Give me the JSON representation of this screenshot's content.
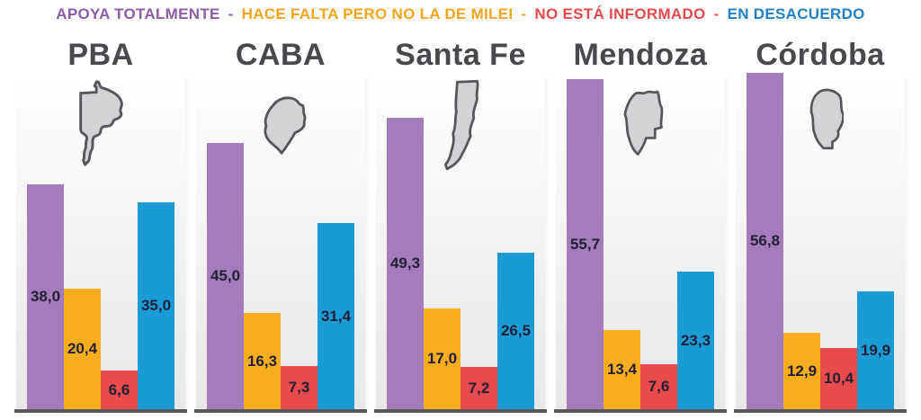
{
  "legend": {
    "separator": "-",
    "items": [
      {
        "label": "APOYA TOTALMENTE",
        "color": "#8e5ba8"
      },
      {
        "label": "HACE FALTA PERO NO LA DE MILEI",
        "color": "#f6a41d"
      },
      {
        "label": "NO ESTÁ INFORMADO",
        "color": "#e8484b"
      },
      {
        "label": "EN DESACUERDO",
        "color": "#2280c6"
      }
    ]
  },
  "colors": {
    "bars": [
      "#a57cbb",
      "#f8ad1e",
      "#e94b4c",
      "#199cd6"
    ],
    "baseline": "#59595b",
    "title": "#49484c",
    "value_label": "#211e36",
    "map_fill": "#d3d3d5",
    "map_stroke": "#55555a"
  },
  "chart_data": {
    "type": "bar",
    "title": "",
    "legend_position": "top",
    "grid": false,
    "ylim": [
      0,
      60
    ],
    "categories": [
      "APOYA TOTALMENTE",
      "HACE FALTA PERO NO LA DE MILEI",
      "NO ESTÁ INFORMADO",
      "EN DESACUERDO"
    ],
    "groups": [
      {
        "name": "PBA",
        "values": [
          38.0,
          20.4,
          6.6,
          35.0
        ],
        "labels": [
          "38,0",
          "20,4",
          "6,6",
          "35,0"
        ]
      },
      {
        "name": "CABA",
        "values": [
          45.0,
          16.3,
          7.3,
          31.4
        ],
        "labels": [
          "45,0",
          "16,3",
          "7,3",
          "31,4"
        ]
      },
      {
        "name": "Santa Fe",
        "values": [
          49.3,
          17.0,
          7.2,
          26.5
        ],
        "labels": [
          "49,3",
          "17,0",
          "7,2",
          "26,5"
        ]
      },
      {
        "name": "Mendoza",
        "values": [
          55.7,
          13.4,
          7.6,
          23.3
        ],
        "labels": [
          "55,7",
          "13,4",
          "7,6",
          "23,3"
        ]
      },
      {
        "name": "Córdoba",
        "values": [
          56.8,
          12.9,
          10.4,
          19.9
        ],
        "labels": [
          "56,8",
          "12,9",
          "10,4",
          "19,9"
        ]
      }
    ]
  }
}
